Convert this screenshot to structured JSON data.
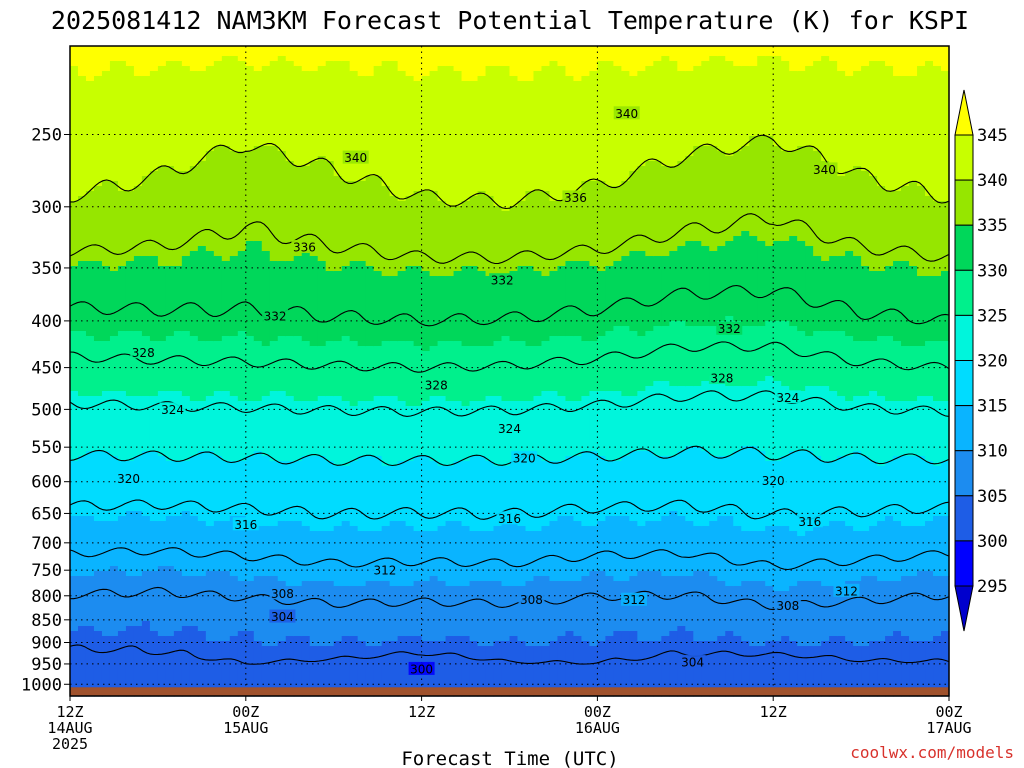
{
  "chart_data": {
    "type": "heatmap",
    "title": "2025081412 NAM3KM Forecast Potential Temperature (K) for KSPI",
    "xlabel": "Forecast Time (UTC)",
    "ylabel": "",
    "credit": "coolwx.com/models",
    "y_axis": {
      "scale": "log",
      "ticks": [
        "250",
        "300",
        "350",
        "400",
        "450",
        "500",
        "550",
        "600",
        "650",
        "700",
        "750",
        "800",
        "850",
        "900",
        "950",
        "1000"
      ],
      "range": [
        200,
        1030
      ]
    },
    "x_axis": {
      "range_hours": [
        0,
        60
      ],
      "ticks": [
        {
          "hour": 0,
          "lines": [
            "12Z",
            "14AUG",
            "2025"
          ]
        },
        {
          "hour": 12,
          "lines": [
            "00Z",
            "15AUG"
          ]
        },
        {
          "hour": 24,
          "lines": [
            "12Z"
          ]
        },
        {
          "hour": 36,
          "lines": [
            "00Z",
            "16AUG"
          ]
        },
        {
          "hour": 48,
          "lines": [
            "12Z"
          ]
        },
        {
          "hour": 60,
          "lines": [
            "00Z",
            "17AUG"
          ]
        }
      ]
    },
    "grid": true,
    "colorbar": {
      "position": "right",
      "levels": [
        "295",
        "300",
        "305",
        "310",
        "315",
        "320",
        "325",
        "330",
        "335",
        "340",
        "345"
      ],
      "colors": [
        "#0000cd",
        "#0000ff",
        "#1e5de6",
        "#1c8cf0",
        "#0ab4ff",
        "#00dcff",
        "#00f5dc",
        "#00f08c",
        "#00d75a",
        "#96e600",
        "#c8ff00",
        "#ffff00"
      ]
    },
    "ground_color": "#a0522d",
    "hours": [
      0,
      6,
      12,
      18,
      24,
      30,
      36,
      42,
      48,
      54,
      60
    ],
    "contour_levels": [
      300,
      304,
      308,
      312,
      316,
      320,
      324,
      328,
      332,
      336,
      340
    ],
    "contour_labels": [
      {
        "value": "340",
        "hour": 19.5,
        "p": 265
      },
      {
        "value": "340",
        "hour": 38.0,
        "p": 237
      },
      {
        "value": "340",
        "hour": 51.5,
        "p": 273
      },
      {
        "value": "336",
        "hour": 16.0,
        "p": 332
      },
      {
        "value": "336",
        "hour": 34.5,
        "p": 293
      },
      {
        "value": "332",
        "hour": 14.0,
        "p": 395
      },
      {
        "value": "332",
        "hour": 29.5,
        "p": 361
      },
      {
        "value": "332",
        "hour": 45.0,
        "p": 408
      },
      {
        "value": "328",
        "hour": 5.0,
        "p": 433
      },
      {
        "value": "328",
        "hour": 25.0,
        "p": 470
      },
      {
        "value": "328",
        "hour": 44.5,
        "p": 462
      },
      {
        "value": "324",
        "hour": 7.0,
        "p": 500
      },
      {
        "value": "324",
        "hour": 30.0,
        "p": 525
      },
      {
        "value": "324",
        "hour": 49.0,
        "p": 485
      },
      {
        "value": "320",
        "hour": 4.0,
        "p": 595
      },
      {
        "value": "320",
        "hour": 31.0,
        "p": 565
      },
      {
        "value": "320",
        "hour": 48.0,
        "p": 598
      },
      {
        "value": "316",
        "hour": 12.0,
        "p": 668
      },
      {
        "value": "316",
        "hour": 30.0,
        "p": 658
      },
      {
        "value": "316",
        "hour": 50.5,
        "p": 663
      },
      {
        "value": "312",
        "hour": 21.5,
        "p": 750
      },
      {
        "value": "312",
        "hour": 38.5,
        "p": 808
      },
      {
        "value": "312",
        "hour": 53.0,
        "p": 790
      },
      {
        "value": "308",
        "hour": 14.5,
        "p": 795
      },
      {
        "value": "308",
        "hour": 31.5,
        "p": 808
      },
      {
        "value": "308",
        "hour": 49.0,
        "p": 820
      },
      {
        "value": "304",
        "hour": 14.5,
        "p": 843
      },
      {
        "value": "304",
        "hour": 42.5,
        "p": 945
      },
      {
        "value": "300",
        "hour": 24.0,
        "p": 962
      }
    ]
  }
}
